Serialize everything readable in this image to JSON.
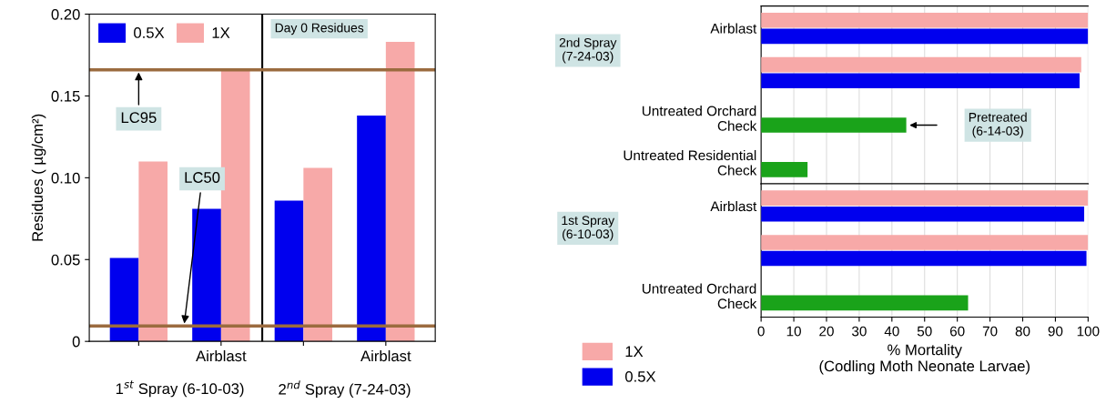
{
  "chart_data": [
    {
      "type": "bar",
      "ylabel": "Residues ( µg/cm²)",
      "categories": [
        null,
        "Airblast",
        null,
        "Airblast"
      ],
      "series": [
        {
          "name": "0.5X",
          "color": "#0000ee",
          "values": [
            0.051,
            0.081,
            0.086,
            0.138
          ]
        },
        {
          "name": "1X",
          "color": "#f7a9a8",
          "values": [
            0.11,
            0.166,
            0.106,
            0.183
          ]
        }
      ],
      "ylim": [
        0,
        0.2
      ],
      "yticks": [
        0,
        {
          "value": 0.05,
          "label": "0.05"
        },
        {
          "value": 0.1,
          "label": "0.10"
        },
        {
          "value": 0.15,
          "label": "0.15"
        },
        {
          "value": 0.2,
          "label": "0.20"
        }
      ],
      "ref_lines": [
        {
          "axis": "y",
          "value": 0.166,
          "label": "LC95",
          "color": "#9b6b3f"
        },
        {
          "axis": "y",
          "value": 0.0094,
          "label": "LC50",
          "color": "#9b6b3f"
        }
      ],
      "annotations": [
        "Day 0 Residues",
        "1$^{st}$ Spray (6-10-03)",
        "2$^{nd}$ Spray (7-24-03)"
      ],
      "legend": "top left",
      "grid": false
    },
    {
      "type": "bar",
      "orientation": "horizontal",
      "categories": [
        "Airblast",
        null,
        "Untreated Orchard Check",
        "Untreated Residential Check"
      ],
      "series": [
        {
          "name": "1X",
          "color": "#f7a9a8",
          "values": [
            100,
            97.9,
            null,
            null
          ]
        },
        {
          "name": "0.5X",
          "color": "#0000ee",
          "values": [
            100,
            97.4,
            null,
            null
          ]
        },
        {
          "color": "#1aa31a",
          "values": [
            null,
            null,
            44.4,
            14.2
          ]
        }
      ],
      "xlim": [
        0,
        100
      ],
      "xticks": [
        0,
        10,
        20,
        30,
        40,
        50,
        60,
        70,
        80,
        90,
        100
      ],
      "tick_labels": "y",
      "annotations": [
        "2nd Spray\n(7-24-03)",
        "Pretreated\n(6-14-03)"
      ],
      "legend": "bottom left",
      "grid": "x"
    },
    {
      "type": "bar",
      "orientation": "horizontal",
      "xlabel": "% Mortality\n(Codling Moth Neonate Larvae)",
      "categories": [
        "Airblast",
        null,
        "Untreated Orchard Check"
      ],
      "series": [
        {
          "color": "#f7a9a8",
          "values": [
            100,
            100,
            null
          ]
        },
        {
          "color": "#0000ee",
          "values": [
            98.8,
            99.5,
            null
          ]
        },
        {
          "color": "#1aa31a",
          "values": [
            null,
            null,
            63.3
          ]
        }
      ],
      "xlim": [
        0,
        100
      ],
      "xticks": [
        0,
        10,
        20,
        30,
        40,
        50,
        60,
        70,
        80,
        90,
        100
      ],
      "annotations": [
        "1st Spray\n(6-10-03)"
      ],
      "grid": "x"
    }
  ]
}
